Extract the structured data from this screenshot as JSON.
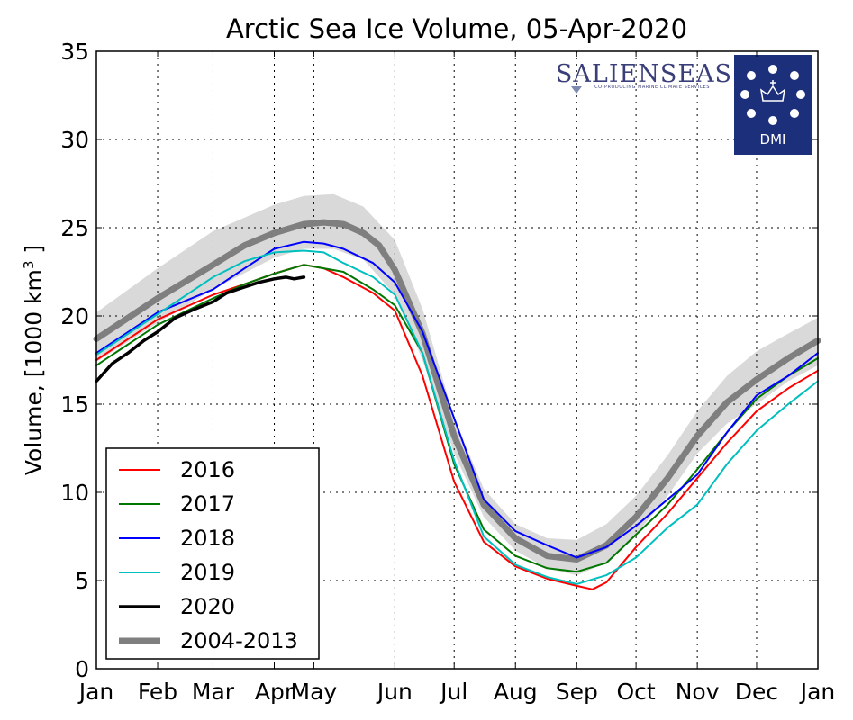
{
  "chart_data": {
    "type": "line",
    "title": "Arctic Sea Ice Volume, 05-Apr-2020",
    "ylabel": "Volume, [1000 km",
    "ylabel_sup": "3",
    "ylabel_tail": " ]",
    "ylim": [
      0,
      35
    ],
    "xlim": [
      0,
      365
    ],
    "yticks": [
      0,
      5,
      10,
      15,
      20,
      25,
      30,
      35
    ],
    "xtick_labels": [
      "Jan",
      "Feb",
      "Mar",
      "Apr",
      "May",
      "Jun",
      "Jul",
      "Aug",
      "Sep",
      "Oct",
      "Nov",
      "Dec",
      "Jan"
    ],
    "xtick_days": [
      0,
      31,
      59,
      90,
      110,
      151,
      181,
      212,
      243,
      273,
      304,
      334,
      365
    ],
    "grid": true,
    "legend_position": "lower-left",
    "band": {
      "name": "2004-2013 ± 1 std",
      "color": "#d9d9d9",
      "x": [
        0,
        31,
        59,
        90,
        105,
        120,
        135,
        151,
        165,
        181,
        196,
        212,
        228,
        243,
        258,
        273,
        289,
        304,
        319,
        334,
        350,
        365
      ],
      "lower": [
        17.4,
        19.6,
        21.5,
        23.3,
        23.8,
        23.8,
        23.2,
        21.2,
        17.5,
        12.2,
        8.6,
        6.7,
        5.7,
        5.3,
        6.0,
        7.6,
        9.8,
        12.2,
        13.9,
        15.0,
        16.3,
        17.2
      ],
      "upper": [
        20.2,
        22.7,
        24.8,
        26.3,
        26.8,
        26.9,
        26.2,
        24.3,
        20.4,
        14.2,
        10.2,
        8.2,
        7.4,
        7.3,
        8.2,
        9.8,
        12.1,
        14.6,
        16.6,
        18.0,
        19.0,
        19.9
      ]
    },
    "series": [
      {
        "name": "2016",
        "color": "#ff0000",
        "width": 2,
        "x": [
          0,
          31,
          59,
          75,
          90,
          105,
          115,
          125,
          140,
          151,
          165,
          181,
          196,
          212,
          228,
          243,
          251,
          258,
          273,
          289,
          304,
          319,
          334,
          350,
          365
        ],
        "y": [
          17.5,
          19.8,
          21.2,
          21.8,
          22.4,
          22.9,
          22.7,
          22.2,
          21.3,
          20.3,
          16.6,
          10.6,
          7.2,
          5.8,
          5.1,
          4.7,
          4.5,
          4.9,
          6.9,
          8.8,
          10.8,
          12.8,
          14.6,
          15.9,
          16.9
        ]
      },
      {
        "name": "2017",
        "color": "#007700",
        "width": 2,
        "x": [
          0,
          31,
          59,
          75,
          90,
          105,
          115,
          125,
          140,
          151,
          165,
          181,
          196,
          212,
          228,
          243,
          258,
          273,
          289,
          304,
          319,
          334,
          350,
          365
        ],
        "y": [
          17.2,
          19.5,
          21.0,
          21.8,
          22.4,
          22.9,
          22.7,
          22.5,
          21.5,
          20.6,
          17.9,
          11.6,
          7.9,
          6.4,
          5.7,
          5.5,
          6.0,
          7.6,
          9.3,
          11.3,
          13.4,
          15.3,
          16.6,
          17.6
        ]
      },
      {
        "name": "2018",
        "color": "#0000ff",
        "width": 2,
        "x": [
          0,
          31,
          59,
          75,
          90,
          105,
          115,
          125,
          140,
          151,
          165,
          181,
          196,
          212,
          228,
          243,
          258,
          273,
          289,
          304,
          319,
          334,
          350,
          365
        ],
        "y": [
          17.9,
          20.2,
          21.5,
          22.7,
          23.8,
          24.2,
          24.1,
          23.8,
          23.0,
          21.9,
          19.1,
          14.2,
          9.6,
          7.8,
          7.0,
          6.3,
          6.9,
          8.1,
          9.6,
          11.0,
          13.4,
          15.5,
          16.6,
          17.9
        ]
      },
      {
        "name": "2019",
        "color": "#00bfbf",
        "width": 2,
        "x": [
          0,
          31,
          59,
          75,
          90,
          105,
          115,
          125,
          140,
          151,
          165,
          181,
          196,
          212,
          228,
          243,
          258,
          273,
          289,
          304,
          319,
          334,
          350,
          365
        ],
        "y": [
          17.8,
          20.1,
          22.2,
          23.1,
          23.6,
          23.7,
          23.6,
          23.0,
          22.2,
          21.2,
          17.9,
          11.8,
          7.5,
          5.9,
          5.2,
          4.8,
          5.3,
          6.3,
          8.0,
          9.3,
          11.6,
          13.5,
          15.0,
          16.3
        ]
      },
      {
        "name": "2020",
        "color": "#000000",
        "width": 3.5,
        "x": [
          0,
          8,
          16,
          24,
          31,
          40,
          50,
          59,
          66,
          74,
          82,
          90,
          96,
          100,
          105
        ],
        "y": [
          16.3,
          17.3,
          17.9,
          18.6,
          19.1,
          19.9,
          20.4,
          20.8,
          21.3,
          21.6,
          21.9,
          22.1,
          22.2,
          22.1,
          22.2
        ]
      },
      {
        "name": "2004-2013",
        "color": "#7f7f7f",
        "width": 7,
        "x": [
          0,
          31,
          59,
          75,
          90,
          105,
          115,
          125,
          135,
          143,
          151,
          165,
          181,
          196,
          212,
          228,
          243,
          258,
          273,
          289,
          304,
          319,
          334,
          350,
          365
        ],
        "y": [
          18.7,
          21.0,
          22.9,
          24.0,
          24.7,
          25.2,
          25.3,
          25.2,
          24.7,
          24.0,
          22.6,
          19.0,
          13.2,
          9.3,
          7.4,
          6.4,
          6.2,
          7.0,
          8.6,
          10.8,
          13.2,
          15.1,
          16.4,
          17.6,
          18.6
        ]
      }
    ]
  },
  "logos": {
    "salienseas": {
      "name": "SALIENSEAS",
      "tagline": "CO-PRODUCING MARINE CLIMATE SERVICES",
      "color": "#3a3f7a"
    },
    "dmi": {
      "name": "DMI",
      "background": "#1c2f7a"
    }
  }
}
